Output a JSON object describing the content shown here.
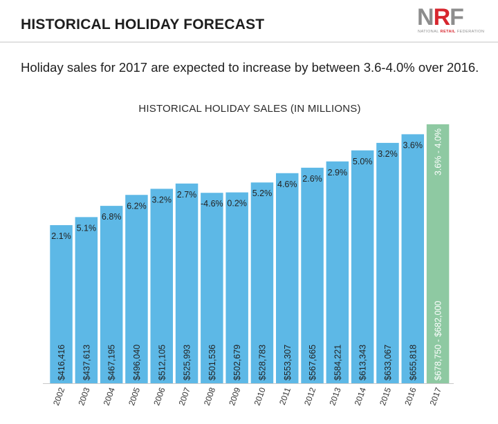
{
  "header": {
    "title": "HISTORICAL HOLIDAY FORECAST",
    "logo": {
      "mark": "NRF",
      "tagline_pre": "NATIONAL",
      "tagline_red": "RETAIL",
      "tagline_post": "FEDERATION"
    }
  },
  "subtitle": "Holiday sales for 2017 are expected to increase by between 3.6-4.0% over 2016.",
  "chart_data": {
    "type": "bar",
    "title": "HISTORICAL HOLIDAY SALES (IN MILLIONS)",
    "xlabel": "",
    "ylabel": "",
    "categories": [
      "2002",
      "2003",
      "2004",
      "2005",
      "2006",
      "2007",
      "2008",
      "2009",
      "2010",
      "2011",
      "2012",
      "2013",
      "2014",
      "2015",
      "2016",
      "2017"
    ],
    "values": [
      416416,
      437613,
      467195,
      496040,
      512105,
      525993,
      501536,
      502679,
      528783,
      553307,
      567665,
      584221,
      613343,
      633067,
      655818,
      682000
    ],
    "value_labels": [
      "$416,416",
      "$437,613",
      "$467,195",
      "$496,040",
      "$512,105",
      "$525,993",
      "$501,536",
      "$502,679",
      "$528,783",
      "$553,307",
      "$567,665",
      "$584,221",
      "$613,343",
      "$633,067",
      "$655,818",
      "$678,750 - $682,000"
    ],
    "growth_labels": [
      "2.1%",
      "5.1%",
      "6.8%",
      "6.2%",
      "3.2%",
      "2.7%",
      "-4.6%",
      "0.2%",
      "5.2%",
      "4.6%",
      "2.6%",
      "2.9%",
      "5.0%",
      "3.2%",
      "3.6%",
      "3.6% - 4.0%"
    ],
    "forecast_index": 15,
    "ylim": [
      0,
      682000
    ],
    "grid": false,
    "legend": "none",
    "colors": {
      "actual": "#5db8e6",
      "forecast": "#8ec9a2",
      "baseline": "#c8c8c8",
      "text": "#222222"
    }
  }
}
